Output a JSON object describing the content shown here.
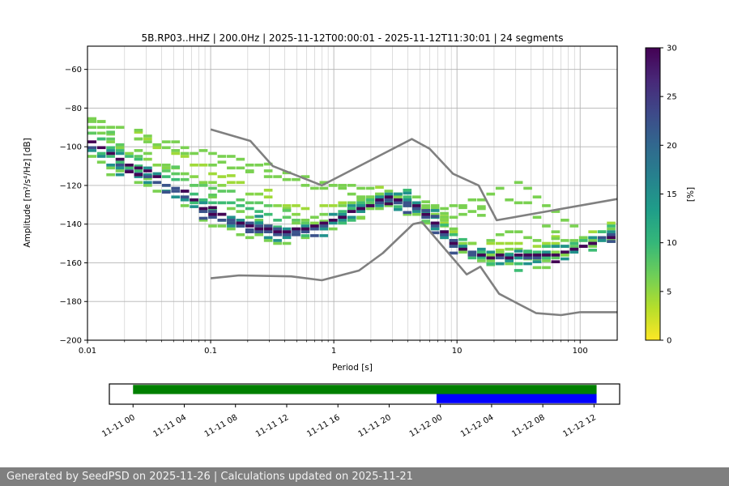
{
  "figure": {
    "footer": "Generated by SeedPSD on 2025-11-26 | Calculations updated on 2025-11-21",
    "footer_bg": "#7f7f7f"
  },
  "chart_data": {
    "type": "line",
    "subtype": "ppsd-spectral-histogram",
    "title": "5B.RP03..HHZ | 200.0Hz | 2025-11-12T00:00:01 - 2025-11-12T11:30:01 | 24 segments",
    "xlabel": "Period [s]",
    "ylabel": "Amplitude [m²/s⁴/Hz] [dB]",
    "xscale": "log",
    "xlim": [
      0.01,
      200
    ],
    "ylim": [
      -200,
      -48
    ],
    "xticks": [
      0.01,
      0.1,
      1,
      10,
      100
    ],
    "xtick_labels": [
      "0.01",
      "0.1",
      "1",
      "10",
      "100"
    ],
    "yticks": [
      -200,
      -180,
      -160,
      -140,
      -120,
      -100,
      -80,
      -60
    ],
    "grid": true,
    "grid_color": "#b4b4b4",
    "grid_minor_color": "#cfcfcf",
    "colorbar": {
      "label": "[%]",
      "min": 0,
      "max": 30,
      "ticks": [
        0,
        5,
        10,
        15,
        20,
        25,
        30
      ],
      "colormap": "viridis_r",
      "stops_bottom_to_top": [
        "#fde725",
        "#b5de2b",
        "#6ece58",
        "#35b779",
        "#1f9e89",
        "#26828e",
        "#31688e",
        "#3e4989",
        "#482878",
        "#440154"
      ]
    },
    "noise_models": {
      "color": "#808080",
      "high": [
        [
          0.1,
          -91
        ],
        [
          0.21,
          -97
        ],
        [
          0.32,
          -110
        ],
        [
          0.8,
          -120
        ],
        [
          4.3,
          -96
        ],
        [
          6.0,
          -101
        ],
        [
          9.3,
          -114
        ],
        [
          15,
          -120
        ],
        [
          21,
          -138
        ],
        [
          200,
          -127
        ]
      ],
      "low": [
        [
          0.1,
          -168
        ],
        [
          0.17,
          -166.5
        ],
        [
          0.45,
          -167
        ],
        [
          0.8,
          -169
        ],
        [
          1.6,
          -164
        ],
        [
          2.5,
          -155
        ],
        [
          4.4,
          -140
        ],
        [
          5.2,
          -139
        ],
        [
          12,
          -166
        ],
        [
          15.5,
          -162
        ],
        [
          22,
          -176
        ],
        [
          31,
          -181
        ],
        [
          44,
          -186
        ],
        [
          70,
          -187
        ],
        [
          100,
          -185.5
        ],
        [
          200,
          -185.5
        ]
      ]
    },
    "series": [
      {
        "name": "outlier-high-1",
        "percent": 4,
        "color": "#a0da39",
        "points": [
          [
            0.01,
            -86
          ],
          [
            0.03,
            -97
          ],
          [
            0.07,
            -108
          ],
          [
            0.15,
            -118
          ],
          [
            0.3,
            -127
          ],
          [
            0.6,
            -133
          ],
          [
            1.2,
            -130
          ],
          [
            2.5,
            -124
          ],
          [
            5,
            -131
          ],
          [
            10,
            -145
          ],
          [
            16,
            -152
          ],
          [
            25,
            -149
          ],
          [
            45,
            -152
          ],
          [
            90,
            -149
          ],
          [
            200,
            -139
          ]
        ]
      },
      {
        "name": "outlier-high-2",
        "percent": 6,
        "color": "#7ad151",
        "points": [
          [
            0.01,
            -84
          ],
          [
            0.02,
            -91
          ],
          [
            0.05,
            -99
          ],
          [
            0.1,
            -104
          ],
          [
            0.2,
            -109
          ],
          [
            0.5,
            -115
          ],
          [
            1,
            -119
          ],
          [
            2,
            -123
          ],
          [
            4,
            -127
          ],
          [
            8,
            -132
          ],
          [
            15,
            -128
          ],
          [
            22,
            -121
          ],
          [
            30,
            -118
          ],
          [
            40,
            -124
          ],
          [
            60,
            -134
          ],
          [
            100,
            -144
          ],
          [
            200,
            -143
          ]
        ]
      },
      {
        "name": "outlier-high-3",
        "percent": 6,
        "color": "#7ad151",
        "points": [
          [
            0.01,
            -87
          ],
          [
            0.02,
            -94
          ],
          [
            0.05,
            -102
          ],
          [
            0.1,
            -108
          ],
          [
            0.2,
            -112
          ],
          [
            0.5,
            -118
          ],
          [
            1,
            -122
          ],
          [
            2,
            -126
          ],
          [
            4,
            -130
          ],
          [
            8,
            -137
          ],
          [
            15,
            -134
          ],
          [
            25,
            -127
          ],
          [
            35,
            -129
          ],
          [
            50,
            -138
          ],
          [
            80,
            -148
          ],
          [
            200,
            -147
          ]
        ]
      },
      {
        "name": "band-green-1",
        "percent": 6,
        "color": "#7ad151",
        "points": [
          [
            0.01,
            -89
          ],
          [
            0.02,
            -99
          ],
          [
            0.05,
            -110
          ],
          [
            0.1,
            -126
          ],
          [
            0.2,
            -136
          ],
          [
            0.35,
            -141
          ],
          [
            0.6,
            -139
          ],
          [
            1,
            -134
          ],
          [
            2,
            -126
          ],
          [
            3,
            -123
          ],
          [
            5,
            -128
          ],
          [
            8,
            -140
          ],
          [
            12,
            -150
          ],
          [
            18,
            -148
          ],
          [
            28,
            -143
          ],
          [
            40,
            -148
          ],
          [
            70,
            -153
          ],
          [
            120,
            -147
          ],
          [
            200,
            -140
          ]
        ]
      },
      {
        "name": "band-green-2",
        "percent": 6,
        "color": "#7ad151",
        "points": [
          [
            0.01,
            -103
          ],
          [
            0.02,
            -115
          ],
          [
            0.05,
            -126
          ],
          [
            0.1,
            -139
          ],
          [
            0.2,
            -146
          ],
          [
            0.35,
            -149
          ],
          [
            0.6,
            -147
          ],
          [
            1,
            -142
          ],
          [
            2,
            -133
          ],
          [
            3,
            -130
          ],
          [
            5,
            -136
          ],
          [
            8,
            -147
          ],
          [
            12,
            -156
          ],
          [
            20,
            -161
          ],
          [
            40,
            -160
          ],
          [
            80,
            -156
          ],
          [
            200,
            -148
          ]
        ]
      },
      {
        "name": "band-green-3",
        "percent": 6,
        "color": "#86d549",
        "points": [
          [
            0.01,
            -91
          ],
          [
            0.02,
            -101
          ],
          [
            0.04,
            -110
          ],
          [
            0.07,
            -116
          ],
          [
            0.12,
            -121
          ],
          [
            0.2,
            -124
          ],
          [
            0.3,
            -128
          ],
          [
            0.5,
            -135
          ],
          [
            0.9,
            -140
          ],
          [
            1.8,
            -131
          ],
          [
            3,
            -125
          ],
          [
            4.5,
            -128
          ],
          [
            7,
            -137
          ],
          [
            11,
            -149
          ],
          [
            18,
            -155
          ],
          [
            30,
            -153
          ],
          [
            60,
            -156
          ],
          [
            120,
            -151
          ],
          [
            200,
            -144
          ]
        ]
      },
      {
        "name": "band-green-4",
        "percent": 8,
        "color": "#5ec962",
        "points": [
          [
            0.01,
            -90
          ],
          [
            0.02,
            -102
          ],
          [
            0.05,
            -114
          ],
          [
            0.08,
            -120
          ],
          [
            0.13,
            -124
          ],
          [
            0.2,
            -127
          ],
          [
            0.3,
            -131
          ],
          [
            0.5,
            -138
          ],
          [
            0.8,
            -141
          ],
          [
            1.5,
            -132
          ],
          [
            2.5,
            -126
          ],
          [
            4,
            -128
          ],
          [
            6,
            -136
          ],
          [
            9,
            -148
          ],
          [
            15,
            -157
          ],
          [
            25,
            -158
          ],
          [
            50,
            -158
          ],
          [
            100,
            -152
          ],
          [
            200,
            -145
          ]
        ]
      },
      {
        "name": "band-green-5",
        "percent": 10,
        "color": "#3dbc74",
        "points": [
          [
            0.01,
            -92
          ],
          [
            0.02,
            -104
          ],
          [
            0.05,
            -117
          ],
          [
            0.1,
            -130
          ],
          [
            0.15,
            -128
          ],
          [
            0.25,
            -133
          ],
          [
            0.4,
            -140
          ],
          [
            0.7,
            -142
          ],
          [
            1,
            -137
          ],
          [
            2,
            -127
          ],
          [
            3,
            -124
          ],
          [
            5,
            -129
          ],
          [
            8,
            -143
          ],
          [
            12,
            -153
          ],
          [
            20,
            -155
          ],
          [
            40,
            -155
          ],
          [
            90,
            -150
          ],
          [
            200,
            -141
          ]
        ]
      },
      {
        "name": "band-green-6",
        "percent": 10,
        "color": "#3dbc74",
        "points": [
          [
            0.01,
            -98
          ],
          [
            0.02,
            -110
          ],
          [
            0.05,
            -121
          ],
          [
            0.1,
            -135
          ],
          [
            0.2,
            -142
          ],
          [
            0.4,
            -146
          ],
          [
            0.7,
            -144
          ],
          [
            1.2,
            -139
          ],
          [
            2.2,
            -130
          ],
          [
            3.2,
            -127
          ],
          [
            5,
            -133
          ],
          [
            8,
            -145
          ],
          [
            12,
            -155
          ],
          [
            20,
            -160
          ],
          [
            35,
            -159
          ],
          [
            70,
            -156
          ],
          [
            130,
            -149
          ],
          [
            200,
            -145
          ]
        ]
      },
      {
        "name": "band-teal-1",
        "percent": 15,
        "color": "#21918c",
        "points": [
          [
            0.01,
            -94
          ],
          [
            0.02,
            -106
          ],
          [
            0.05,
            -118
          ],
          [
            0.1,
            -132
          ],
          [
            0.2,
            -139
          ],
          [
            0.35,
            -143
          ],
          [
            0.6,
            -141
          ],
          [
            1,
            -136
          ],
          [
            2,
            -128
          ],
          [
            3,
            -125
          ],
          [
            5,
            -130
          ],
          [
            7,
            -139
          ],
          [
            10,
            -150
          ],
          [
            20,
            -156
          ],
          [
            40,
            -156
          ],
          [
            80,
            -152
          ],
          [
            200,
            -142
          ]
        ]
      },
      {
        "name": "band-teal-2",
        "percent": 15,
        "color": "#21918c",
        "points": [
          [
            0.01,
            -101
          ],
          [
            0.02,
            -113
          ],
          [
            0.05,
            -124
          ],
          [
            0.1,
            -137
          ],
          [
            0.2,
            -144
          ],
          [
            0.35,
            -147
          ],
          [
            0.6,
            -145
          ],
          [
            1,
            -140
          ],
          [
            2,
            -131
          ],
          [
            3,
            -128
          ],
          [
            5,
            -134
          ],
          [
            7,
            -143
          ],
          [
            10,
            -154
          ],
          [
            20,
            -159
          ],
          [
            40,
            -159
          ],
          [
            80,
            -155
          ],
          [
            200,
            -146
          ]
        ]
      },
      {
        "name": "band-navy-1",
        "percent": 22,
        "color": "#3b528b",
        "points": [
          [
            0.01,
            -99
          ],
          [
            0.02,
            -111
          ],
          [
            0.05,
            -122
          ],
          [
            0.1,
            -136
          ],
          [
            0.2,
            -143
          ],
          [
            0.35,
            -146
          ],
          [
            0.6,
            -144
          ],
          [
            1,
            -139
          ],
          [
            2,
            -130
          ],
          [
            3,
            -127
          ],
          [
            5,
            -133
          ],
          [
            7,
            -142
          ],
          [
            10,
            -153
          ],
          [
            20,
            -158
          ],
          [
            40,
            -158
          ],
          [
            80,
            -154
          ],
          [
            200,
            -144
          ]
        ]
      },
      {
        "name": "band-navy-2",
        "percent": 22,
        "color": "#3b528b",
        "points": [
          [
            0.05,
            -121
          ],
          [
            0.1,
            -133
          ],
          [
            0.2,
            -140
          ],
          [
            0.4,
            -144
          ],
          [
            0.8,
            -141
          ],
          [
            1.5,
            -133
          ],
          [
            2.5,
            -127
          ],
          [
            4,
            -129
          ],
          [
            6,
            -137
          ],
          [
            9,
            -149
          ],
          [
            14,
            -156
          ]
        ]
      },
      {
        "name": "psd-mode",
        "percent": 30,
        "color": "#440154",
        "points": [
          [
            0.01,
            -96
          ],
          [
            0.02,
            -108
          ],
          [
            0.05,
            -120
          ],
          [
            0.1,
            -134
          ],
          [
            0.2,
            -141
          ],
          [
            0.35,
            -144
          ],
          [
            0.6,
            -143
          ],
          [
            1,
            -138
          ],
          [
            2,
            -129
          ],
          [
            3,
            -126
          ],
          [
            4,
            -127
          ],
          [
            5,
            -132
          ],
          [
            7,
            -141
          ],
          [
            10,
            -152
          ],
          [
            14,
            -156
          ],
          [
            20,
            -157
          ],
          [
            40,
            -157
          ],
          [
            70,
            -155
          ],
          [
            120,
            -150
          ],
          [
            200,
            -147
          ]
        ]
      }
    ],
    "timeline": {
      "xlim_hours": [
        -1.85,
        38.0
      ],
      "tick_hours": [
        0,
        4,
        8,
        12,
        16,
        20,
        24,
        28,
        32,
        36
      ],
      "tick_labels": [
        "11-11 00",
        "11-11 04",
        "11-11 08",
        "11-11 12",
        "11-11 16",
        "11-11 20",
        "11-12 00",
        "11-12 04",
        "11-12 08",
        "11-12 12"
      ],
      "bars": [
        {
          "name": "data-coverage-bar",
          "color": "#008000",
          "range_hours": [
            0.0,
            36.2
          ],
          "row": 0
        },
        {
          "name": "selected-window-bar",
          "color": "#0000ff",
          "range_hours": [
            23.7,
            36.2
          ],
          "row": 1
        }
      ]
    }
  }
}
